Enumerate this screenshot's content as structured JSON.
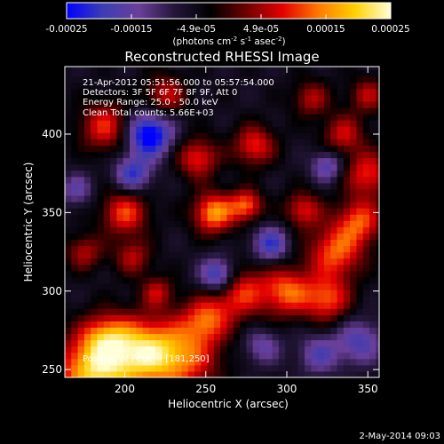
{
  "colorbar": {
    "ticks": [
      "-0.00025",
      "-0.00015",
      "-4.9e-05",
      "4.9e-05",
      "0.00015",
      "0.00025"
    ],
    "units_main": "(photons cm",
    "units_exp1": "-2",
    "units_mid": " s",
    "units_exp2": "-1",
    "units_tail": " asec",
    "units_exp3": "-2",
    "units_close": ")",
    "stops": [
      "#0000ff",
      "#3d3db4",
      "#6a3f9a",
      "#24163a",
      "#000000",
      "#6f0000",
      "#e40000",
      "#ff7a00",
      "#ffd000",
      "#ffffd8"
    ]
  },
  "plot": {
    "title": "Reconstructed RHESSI Image",
    "xlabel": "Heliocentric X (arcsec)",
    "ylabel": "Heliocentric Y (arcsec)",
    "xticks": [
      "200",
      "250",
      "300",
      "350"
    ],
    "yticks": [
      "250",
      "300",
      "350",
      "400"
    ],
    "xrange": [
      163,
      357
    ],
    "yrange": [
      245,
      443
    ]
  },
  "annotations": {
    "time_range": "21-Apr-2012 05:51:56.000 to 05:57:54.000",
    "detectors": "Detectors: 3F 5F 6F 7F 8F 9F, Att 0",
    "energy": "Energy Range: 25.0 - 50.0 keV",
    "clean": "Clean    Total counts: 5.66E+03",
    "peak": "Position of Peak = [181,250]"
  },
  "footer": {
    "date": "2-May-2014 09:03"
  },
  "image_blobs": [
    {
      "x": 181,
      "y": 250,
      "v": 1.0,
      "s": 16
    },
    {
      "x": 210,
      "y": 262,
      "v": 0.85,
      "s": 15
    },
    {
      "x": 235,
      "y": 258,
      "v": 0.7,
      "s": 16
    },
    {
      "x": 250,
      "y": 282,
      "v": 0.6,
      "s": 10
    },
    {
      "x": 270,
      "y": 300,
      "v": 0.65,
      "s": 12
    },
    {
      "x": 300,
      "y": 300,
      "v": 0.7,
      "s": 11
    },
    {
      "x": 325,
      "y": 295,
      "v": 0.65,
      "s": 10
    },
    {
      "x": 330,
      "y": 325,
      "v": 0.7,
      "s": 12
    },
    {
      "x": 345,
      "y": 345,
      "v": 0.65,
      "s": 10
    },
    {
      "x": 350,
      "y": 375,
      "v": 0.6,
      "s": 10
    },
    {
      "x": 335,
      "y": 400,
      "v": 0.5,
      "s": 9
    },
    {
      "x": 255,
      "y": 350,
      "v": 0.85,
      "s": 9
    },
    {
      "x": 275,
      "y": 355,
      "v": 0.7,
      "s": 7
    },
    {
      "x": 245,
      "y": 385,
      "v": 0.6,
      "s": 9
    },
    {
      "x": 280,
      "y": 393,
      "v": 0.6,
      "s": 9
    },
    {
      "x": 310,
      "y": 352,
      "v": 0.55,
      "s": 8
    },
    {
      "x": 200,
      "y": 350,
      "v": 0.65,
      "s": 10
    },
    {
      "x": 205,
      "y": 322,
      "v": 0.45,
      "s": 8
    },
    {
      "x": 188,
      "y": 405,
      "v": 0.6,
      "s": 11
    },
    {
      "x": 225,
      "y": 425,
      "v": 0.5,
      "s": 9
    },
    {
      "x": 315,
      "y": 423,
      "v": 0.45,
      "s": 8
    },
    {
      "x": 350,
      "y": 425,
      "v": 0.45,
      "s": 8
    },
    {
      "x": 175,
      "y": 325,
      "v": 0.45,
      "s": 8
    },
    {
      "x": 220,
      "y": 300,
      "v": 0.45,
      "s": 7
    },
    {
      "x": 188,
      "y": 272,
      "v": 0.5,
      "s": 10
    },
    {
      "x": 215,
      "y": 400,
      "v": -0.9,
      "s": 10
    },
    {
      "x": 258,
      "y": 310,
      "v": -0.8,
      "s": 8
    },
    {
      "x": 290,
      "y": 330,
      "v": -0.6,
      "s": 8
    },
    {
      "x": 205,
      "y": 375,
      "v": -0.6,
      "s": 8
    },
    {
      "x": 345,
      "y": 268,
      "v": -0.5,
      "s": 10
    },
    {
      "x": 325,
      "y": 380,
      "v": -0.5,
      "s": 7
    },
    {
      "x": 320,
      "y": 260,
      "v": -0.45,
      "s": 9
    },
    {
      "x": 285,
      "y": 265,
      "v": -0.4,
      "s": 8
    },
    {
      "x": 170,
      "y": 365,
      "v": -0.4,
      "s": 7
    }
  ]
}
